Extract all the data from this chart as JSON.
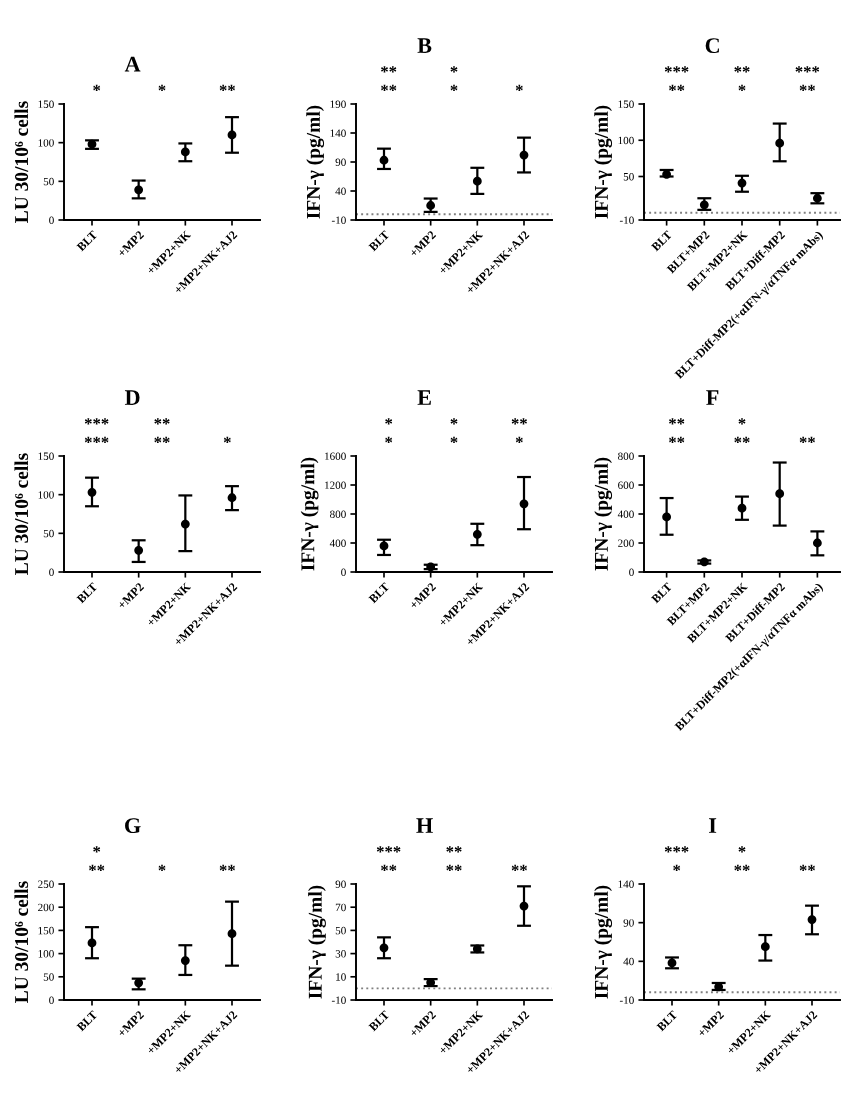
{
  "chart_data": [
    {
      "type": "scatter",
      "title": "A",
      "ylabel": "LU 30/10⁶ cells",
      "categories": [
        "BLT",
        "+MP2",
        "+MP2+NK",
        "+MP2+NK+AJ2"
      ],
      "values": [
        98,
        39,
        88,
        110
      ],
      "marker": "circle",
      "errors": [
        [
          92,
          103
        ],
        [
          28,
          51
        ],
        [
          76,
          99
        ],
        [
          87,
          133
        ]
      ],
      "color": "#000000",
      "ylim": [
        0,
        150
      ],
      "yticks": [
        0,
        50,
        100,
        150
      ],
      "annotations": [
        "*",
        "*",
        "**"
      ]
    },
    {
      "type": "scatter",
      "title": "B",
      "ylabel": "IFN-γ (pg/ml)",
      "categories": [
        "BLT",
        "+MP2",
        "+MP2+NK",
        "+MP2+NK+AJ2"
      ],
      "values": [
        93,
        15,
        57,
        102
      ],
      "marker": "circle",
      "errors": [
        [
          78,
          113
        ],
        [
          4,
          27
        ],
        [
          35,
          80
        ],
        [
          72,
          132
        ]
      ],
      "color": "#000000",
      "ylim": [
        -10,
        190
      ],
      "yticks": [
        -10,
        40,
        90,
        140,
        190
      ],
      "ref_lines": [
        {
          "axis": "y",
          "value": 0,
          "line_style": "dotted",
          "color": "#808080"
        }
      ],
      "annotations": [
        "**",
        "*",
        "*",
        "**",
        "*"
      ]
    },
    {
      "type": "scatter",
      "title": "C",
      "ylabel": "IFN-γ (pg/ml)",
      "categories": [
        "BLT",
        "BLT+MP2",
        "BLT+MP2+NK",
        "BLT+Diff-MP2",
        "BLT+Diff-MP2(+αIFN-γ/αTNFα mAbs)"
      ],
      "values": [
        53,
        11,
        41,
        96,
        20
      ],
      "marker": "circle",
      "errors": [
        [
          50,
          59
        ],
        [
          4,
          20
        ],
        [
          29,
          51
        ],
        [
          71,
          123
        ],
        [
          13,
          27
        ]
      ],
      "color": "#000000",
      "ylim": [
        -10,
        150
      ],
      "yticks": [
        -10,
        50,
        100,
        150
      ],
      "ref_lines": [
        {
          "axis": "y",
          "value": 0,
          "line_style": "dotted",
          "color": "#808080"
        }
      ],
      "annotations": [
        "**",
        "*",
        "**",
        "***",
        "**",
        "***"
      ]
    },
    {
      "type": "scatter",
      "title": "D",
      "ylabel": "LU 30/10⁶ cells",
      "categories": [
        "BLT",
        "+MP2",
        "+MP2+NK",
        "+MP2+NK+AJ2"
      ],
      "values": [
        103,
        28,
        62,
        96
      ],
      "marker": "circle",
      "errors": [
        [
          85,
          122
        ],
        [
          13,
          41
        ],
        [
          27,
          99
        ],
        [
          80,
          111
        ]
      ],
      "color": "#000000",
      "ylim": [
        0,
        150
      ],
      "yticks": [
        0,
        50,
        100,
        150
      ],
      "annotations": [
        "***",
        "**",
        "*",
        "***",
        "**"
      ]
    },
    {
      "type": "scatter",
      "title": "E",
      "ylabel": "IFN-γ (pg/ml)",
      "categories": [
        "BLT",
        "+MP2",
        "+MP2+NK",
        "+MP2+NK+AJ2"
      ],
      "values": [
        360,
        70,
        520,
        940
      ],
      "marker": "circle",
      "errors": [
        [
          235,
          445
        ],
        [
          40,
          100
        ],
        [
          370,
          665
        ],
        [
          590,
          1310
        ]
      ],
      "color": "#000000",
      "ylim": [
        0,
        1600
      ],
      "yticks": [
        0,
        400,
        800,
        1200,
        1600
      ],
      "annotations": [
        "*",
        "*",
        "*",
        "*",
        "*",
        "**"
      ]
    },
    {
      "type": "scatter",
      "title": "F",
      "ylabel": "IFN-γ (pg/ml)",
      "categories": [
        "BLT",
        "BLT+MP2",
        "BLT+MP2+NK",
        "BLT+Diff-MP2",
        "BLT+Diff-MP2(+αIFN-γ/αTNFα mAbs)"
      ],
      "values": [
        380,
        70,
        440,
        540,
        200
      ],
      "marker": "circle",
      "errors": [
        [
          257,
          510
        ],
        [
          58,
          80
        ],
        [
          360,
          520
        ],
        [
          320,
          755
        ],
        [
          115,
          280
        ]
      ],
      "color": "#000000",
      "ylim": [
        0,
        800
      ],
      "yticks": [
        0,
        200,
        400,
        600,
        800
      ],
      "annotations": [
        "**",
        "**",
        "**",
        "**",
        "*"
      ]
    },
    {
      "type": "scatter",
      "title": "G",
      "ylabel": "LU 30/10⁶ cells",
      "categories": [
        "BLT",
        "+MP2",
        "+MP2+NK",
        "+MP2+NK+AJ2"
      ],
      "values": [
        123,
        37,
        85,
        143
      ],
      "marker": "circle",
      "errors": [
        [
          90,
          157
        ],
        [
          23,
          46
        ],
        [
          54,
          118
        ],
        [
          74,
          212
        ]
      ],
      "color": "#000000",
      "ylim": [
        0,
        250
      ],
      "yticks": [
        0,
        50,
        100,
        150,
        200,
        250
      ],
      "annotations": [
        "**",
        "*",
        "**",
        "*"
      ]
    },
    {
      "type": "scatter",
      "title": "H",
      "ylabel": "IFN-γ (pg/ml)",
      "categories": [
        "BLT",
        "+MP2",
        "+MP2+NK",
        "+MP2+NK+AJ2"
      ],
      "values": [
        35,
        5,
        34,
        71
      ],
      "marker": "circle",
      "errors": [
        [
          26,
          44
        ],
        [
          2,
          8
        ],
        [
          31,
          37
        ],
        [
          54,
          88
        ]
      ],
      "color": "#000000",
      "ylim": [
        -10,
        90
      ],
      "yticks": [
        -10,
        10,
        30,
        50,
        70,
        90
      ],
      "ref_lines": [
        {
          "axis": "y",
          "value": 0,
          "line_style": "dotted",
          "color": "#808080"
        }
      ],
      "annotations": [
        "**",
        "**",
        "**",
        "***",
        "**"
      ]
    },
    {
      "type": "scatter",
      "title": "I",
      "ylabel": "IFN-γ (pg/ml)",
      "categories": [
        "BLT",
        "+MP2",
        "+MP2+NK",
        "+MP2+NK+AJ2"
      ],
      "values": [
        38,
        7,
        59,
        94
      ],
      "marker": "circle",
      "errors": [
        [
          31,
          45
        ],
        [
          3,
          12
        ],
        [
          41,
          74
        ],
        [
          75,
          112
        ]
      ],
      "color": "#000000",
      "ylim": [
        -10,
        140
      ],
      "yticks": [
        -10,
        40,
        90,
        140
      ],
      "ref_lines": [
        {
          "axis": "y",
          "value": 0,
          "line_style": "dotted",
          "color": "#808080"
        }
      ],
      "annotations": [
        "*",
        "**",
        "**",
        "***",
        "*"
      ]
    }
  ]
}
